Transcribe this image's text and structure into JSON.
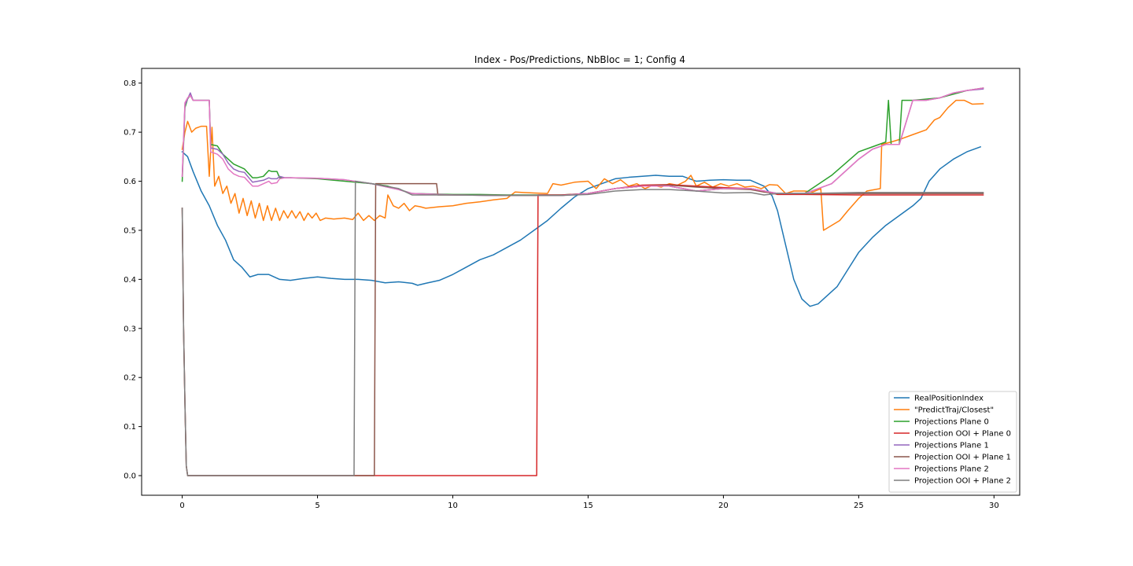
{
  "chart_data": {
    "type": "line",
    "title": "Index - Pos/Predictions, NbBloc = 1; Config 4",
    "xlabel": "",
    "ylabel": "",
    "xlim": [
      -1.5,
      30.95
    ],
    "ylim": [
      -0.04,
      0.83
    ],
    "xticks": [
      0,
      5,
      10,
      15,
      20,
      25,
      30
    ],
    "xtick_labels": [
      "0",
      "5",
      "10",
      "15",
      "20",
      "25",
      "30"
    ],
    "yticks": [
      0.0,
      0.1,
      0.2,
      0.3,
      0.4,
      0.5,
      0.6,
      0.7,
      0.8
    ],
    "ytick_labels": [
      "0.0",
      "0.1",
      "0.2",
      "0.3",
      "0.4",
      "0.5",
      "0.6",
      "0.7",
      "0.8"
    ],
    "grid": false,
    "legend_position": "lower-right",
    "series": [
      {
        "name": "RealPositionIndex",
        "color": "#1f77b4",
        "x": [
          0,
          0.2,
          0.4,
          0.7,
          1.0,
          1.3,
          1.6,
          1.9,
          2.2,
          2.5,
          2.8,
          3.2,
          3.6,
          4.0,
          4.5,
          5.0,
          5.5,
          6.0,
          6.5,
          7.0,
          7.5,
          8.0,
          8.5,
          8.7,
          9.0,
          9.5,
          10.0,
          10.5,
          11.0,
          11.5,
          12.0,
          12.5,
          13.0,
          13.5,
          14.0,
          14.5,
          15.0,
          15.5,
          16.0,
          16.5,
          17.0,
          17.5,
          18.0,
          18.5,
          19.0,
          19.5,
          20.0,
          20.5,
          21.0,
          21.5,
          21.8,
          22.0,
          22.3,
          22.6,
          22.9,
          23.2,
          23.5,
          23.8,
          24.2,
          24.6,
          25.0,
          25.5,
          26.0,
          26.5,
          27.0,
          27.3,
          27.6,
          28.0,
          28.5,
          29.0,
          29.5
        ],
        "y": [
          0.66,
          0.65,
          0.62,
          0.58,
          0.55,
          0.51,
          0.48,
          0.44,
          0.425,
          0.405,
          0.41,
          0.41,
          0.4,
          0.398,
          0.402,
          0.405,
          0.402,
          0.4,
          0.4,
          0.398,
          0.393,
          0.395,
          0.392,
          0.388,
          0.392,
          0.398,
          0.41,
          0.425,
          0.44,
          0.45,
          0.465,
          0.48,
          0.5,
          0.52,
          0.545,
          0.568,
          0.585,
          0.595,
          0.605,
          0.608,
          0.61,
          0.612,
          0.61,
          0.61,
          0.6,
          0.602,
          0.603,
          0.602,
          0.602,
          0.59,
          0.57,
          0.54,
          0.47,
          0.4,
          0.36,
          0.345,
          0.35,
          0.365,
          0.385,
          0.42,
          0.455,
          0.485,
          0.51,
          0.53,
          0.55,
          0.565,
          0.6,
          0.625,
          0.645,
          0.66,
          0.67
        ]
      },
      {
        "name": "\"PredictTraj/Closest\"",
        "color": "#ff7f0e",
        "x": [
          0,
          0.1,
          0.2,
          0.35,
          0.5,
          0.7,
          0.9,
          1.0,
          1.1,
          1.2,
          1.35,
          1.5,
          1.65,
          1.8,
          1.95,
          2.1,
          2.25,
          2.4,
          2.55,
          2.7,
          2.85,
          3.0,
          3.15,
          3.3,
          3.45,
          3.6,
          3.75,
          3.9,
          4.05,
          4.2,
          4.35,
          4.5,
          4.65,
          4.8,
          4.95,
          5.1,
          5.3,
          5.6,
          6.0,
          6.3,
          6.5,
          6.7,
          6.9,
          7.1,
          7.3,
          7.5,
          7.6,
          7.8,
          8.0,
          8.2,
          8.4,
          8.6,
          8.8,
          9.0,
          9.5,
          10.0,
          10.5,
          11.0,
          11.5,
          12.0,
          12.3,
          12.6,
          13.0,
          13.5,
          13.7,
          14.0,
          14.5,
          15.0,
          15.3,
          15.6,
          15.9,
          16.2,
          16.5,
          16.8,
          17.1,
          17.4,
          17.7,
          18.0,
          18.3,
          18.6,
          18.8,
          19.0,
          19.3,
          19.6,
          19.9,
          20.2,
          20.5,
          20.8,
          21.1,
          21.4,
          21.7,
          22.0,
          22.3,
          22.6,
          23.0,
          23.3,
          23.6,
          23.7,
          24.0,
          24.3,
          24.6,
          25.0,
          25.3,
          25.8,
          25.85,
          26.2,
          26.5,
          27.0,
          27.5,
          27.8,
          28.0,
          28.3,
          28.6,
          28.9,
          29.2,
          29.6
        ],
        "y": [
          0.665,
          0.7,
          0.722,
          0.7,
          0.708,
          0.712,
          0.712,
          0.61,
          0.71,
          0.59,
          0.61,
          0.575,
          0.59,
          0.555,
          0.575,
          0.535,
          0.565,
          0.53,
          0.56,
          0.525,
          0.555,
          0.52,
          0.55,
          0.52,
          0.545,
          0.52,
          0.54,
          0.525,
          0.54,
          0.525,
          0.538,
          0.52,
          0.535,
          0.525,
          0.535,
          0.52,
          0.525,
          0.523,
          0.525,
          0.522,
          0.535,
          0.52,
          0.53,
          0.52,
          0.53,
          0.525,
          0.572,
          0.55,
          0.545,
          0.555,
          0.54,
          0.55,
          0.548,
          0.545,
          0.548,
          0.55,
          0.555,
          0.558,
          0.562,
          0.565,
          0.578,
          0.577,
          0.576,
          0.575,
          0.595,
          0.592,
          0.598,
          0.6,
          0.585,
          0.605,
          0.595,
          0.603,
          0.59,
          0.595,
          0.585,
          0.592,
          0.588,
          0.595,
          0.592,
          0.6,
          0.612,
          0.59,
          0.598,
          0.588,
          0.595,
          0.59,
          0.595,
          0.588,
          0.59,
          0.585,
          0.593,
          0.592,
          0.575,
          0.58,
          0.58,
          0.578,
          0.585,
          0.5,
          0.51,
          0.52,
          0.54,
          0.565,
          0.58,
          0.585,
          0.675,
          0.68,
          0.685,
          0.695,
          0.705,
          0.725,
          0.73,
          0.75,
          0.765,
          0.765,
          0.757,
          0.758
        ]
      },
      {
        "name": "Projections Plane 0",
        "color": "#2ca02c",
        "x": [
          0,
          0.1,
          0.2,
          0.3,
          0.4,
          0.6,
          0.8,
          1.0,
          1.05,
          1.3,
          1.5,
          1.7,
          1.9,
          2.1,
          2.3,
          2.6,
          2.75,
          3.0,
          3.2,
          3.3,
          3.5,
          3.6,
          4.0,
          5.0,
          6.0,
          7.0,
          7.6,
          8.5,
          10.0,
          11.0,
          12.0,
          13.0,
          14.0,
          15.0,
          16.0,
          17.0,
          18.0,
          19.0,
          20.0,
          21.0,
          21.5,
          22.0,
          23.0,
          24.0,
          25.0,
          25.5,
          26.0,
          26.1,
          26.2,
          26.5,
          26.6,
          27.0,
          28.0,
          29.0,
          29.6
        ],
        "y": [
          0.6,
          0.75,
          0.768,
          0.775,
          0.765,
          0.765,
          0.765,
          0.765,
          0.675,
          0.672,
          0.655,
          0.645,
          0.635,
          0.63,
          0.625,
          0.607,
          0.607,
          0.61,
          0.622,
          0.62,
          0.62,
          0.607,
          0.607,
          0.605,
          0.6,
          0.595,
          0.59,
          0.575,
          0.573,
          0.573,
          0.572,
          0.572,
          0.572,
          0.575,
          0.585,
          0.59,
          0.59,
          0.58,
          0.585,
          0.585,
          0.58,
          0.575,
          0.575,
          0.612,
          0.66,
          0.67,
          0.68,
          0.765,
          0.675,
          0.675,
          0.765,
          0.765,
          0.77,
          0.785,
          0.79
        ]
      },
      {
        "name": "Projection OOI + Plane 0",
        "color": "#d62728",
        "x": [
          0,
          0.05,
          0.1,
          0.15,
          0.2,
          5.0,
          10.0,
          13.1,
          13.15,
          14.0,
          15.0,
          16.0,
          17.0,
          18.0,
          19.0,
          20.0,
          21.0,
          21.5,
          22.0,
          23.0,
          25.0,
          27.0,
          29.6
        ],
        "y": [
          0.545,
          0.3,
          0.15,
          0.02,
          0.0,
          0.0,
          0.0,
          0.0,
          0.572,
          0.572,
          0.575,
          0.585,
          0.592,
          0.593,
          0.59,
          0.587,
          0.585,
          0.58,
          0.573,
          0.573,
          0.572,
          0.572,
          0.572
        ]
      },
      {
        "name": "Projections Plane 1",
        "color": "#9467bd",
        "x": [
          0,
          0.1,
          0.2,
          0.3,
          0.4,
          0.6,
          0.8,
          1.0,
          1.05,
          1.3,
          1.5,
          1.7,
          1.9,
          2.1,
          2.3,
          2.6,
          2.8,
          3.0,
          3.2,
          3.3,
          3.5,
          3.6,
          3.8,
          4.0,
          5.0,
          6.0,
          7.0,
          8.0,
          8.5,
          10.0,
          12.0,
          14.0,
          15.0,
          16.0,
          17.0,
          18.0,
          19.0,
          20.0,
          21.0,
          21.5,
          22.0,
          23.0,
          23.5,
          24.0,
          24.5,
          25.0,
          25.5,
          26.0,
          26.5,
          27.0,
          27.5,
          28.0,
          28.5,
          29.0,
          29.6
        ],
        "y": [
          0.61,
          0.755,
          0.768,
          0.78,
          0.765,
          0.765,
          0.765,
          0.765,
          0.668,
          0.665,
          0.655,
          0.637,
          0.625,
          0.62,
          0.618,
          0.598,
          0.6,
          0.602,
          0.607,
          0.605,
          0.605,
          0.61,
          0.607,
          0.607,
          0.606,
          0.603,
          0.595,
          0.583,
          0.575,
          0.572,
          0.571,
          0.571,
          0.575,
          0.585,
          0.59,
          0.59,
          0.58,
          0.585,
          0.585,
          0.58,
          0.575,
          0.575,
          0.585,
          0.595,
          0.62,
          0.645,
          0.665,
          0.675,
          0.675,
          0.765,
          0.765,
          0.77,
          0.78,
          0.785,
          0.788
        ]
      },
      {
        "name": "Projection OOI + Plane 1",
        "color": "#8c564b",
        "x": [
          0,
          0.05,
          0.1,
          0.15,
          0.2,
          5.0,
          7.1,
          7.15,
          7.5,
          8.0,
          9.0,
          9.4,
          9.45,
          10.0,
          12.0,
          14.0,
          15.0,
          16.0,
          17.0,
          18.0,
          19.0,
          20.0,
          21.0,
          21.5,
          22.0,
          23.0,
          25.0,
          27.0,
          29.6
        ],
        "y": [
          0.545,
          0.3,
          0.15,
          0.02,
          0.0,
          0.0,
          0.0,
          0.595,
          0.595,
          0.595,
          0.595,
          0.595,
          0.572,
          0.572,
          0.571,
          0.571,
          0.575,
          0.585,
          0.59,
          0.592,
          0.588,
          0.585,
          0.583,
          0.578,
          0.575,
          0.575,
          0.575,
          0.575,
          0.575
        ]
      },
      {
        "name": "Projections Plane 2",
        "color": "#e377c2",
        "x": [
          0,
          0.1,
          0.2,
          0.3,
          0.4,
          0.6,
          0.8,
          1.0,
          1.05,
          1.3,
          1.5,
          1.7,
          1.9,
          2.1,
          2.3,
          2.6,
          2.8,
          3.0,
          3.2,
          3.3,
          3.5,
          3.6,
          3.8,
          4.0,
          5.0,
          6.0,
          7.0,
          8.0,
          8.5,
          10.0,
          12.0,
          14.0,
          15.0,
          16.0,
          17.0,
          18.0,
          19.0,
          20.0,
          21.0,
          21.5,
          22.0,
          23.0,
          23.5,
          24.0,
          24.5,
          25.0,
          25.5,
          26.0,
          26.5,
          27.0,
          27.5,
          28.0,
          28.5,
          29.0,
          29.6
        ],
        "y": [
          0.61,
          0.76,
          0.77,
          0.775,
          0.765,
          0.765,
          0.765,
          0.765,
          0.66,
          0.655,
          0.645,
          0.625,
          0.615,
          0.61,
          0.608,
          0.59,
          0.59,
          0.595,
          0.6,
          0.595,
          0.597,
          0.605,
          0.607,
          0.607,
          0.606,
          0.603,
          0.595,
          0.583,
          0.575,
          0.572,
          0.571,
          0.571,
          0.575,
          0.585,
          0.59,
          0.59,
          0.58,
          0.585,
          0.585,
          0.58,
          0.575,
          0.575,
          0.585,
          0.595,
          0.62,
          0.645,
          0.665,
          0.675,
          0.675,
          0.765,
          0.765,
          0.77,
          0.78,
          0.785,
          0.79
        ]
      },
      {
        "name": "Projection OOI + Plane 2",
        "color": "#7f7f7f",
        "x": [
          0,
          0.05,
          0.1,
          0.15,
          0.2,
          5.0,
          6.35,
          6.4,
          7.0,
          8.0,
          8.5,
          9.0,
          10.0,
          12.0,
          14.0,
          15.0,
          16.0,
          17.0,
          18.0,
          19.0,
          20.0,
          21.0,
          21.5,
          22.0,
          23.0,
          25.0,
          27.0,
          29.6
        ],
        "y": [
          0.545,
          0.3,
          0.15,
          0.02,
          0.0,
          0.0,
          0.0,
          0.6,
          0.595,
          0.585,
          0.572,
          0.572,
          0.572,
          0.571,
          0.571,
          0.573,
          0.58,
          0.583,
          0.583,
          0.58,
          0.576,
          0.577,
          0.572,
          0.575,
          0.575,
          0.577,
          0.577,
          0.577
        ]
      }
    ]
  }
}
